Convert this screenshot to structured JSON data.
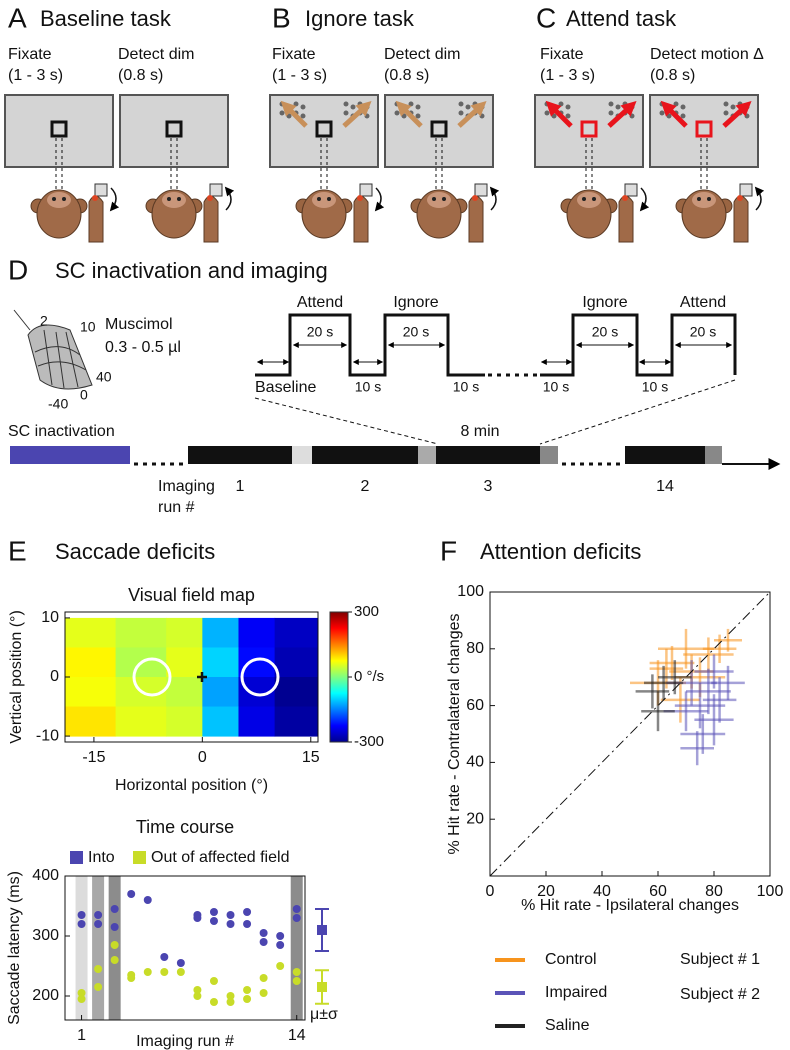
{
  "panel_a": {
    "letter": "A",
    "title": "Baseline task",
    "phase1": [
      "Fixate",
      "(1 - 3 s)"
    ],
    "phase2": [
      "Detect dim",
      "(0.8 s)"
    ]
  },
  "panel_b": {
    "letter": "B",
    "title": "Ignore task",
    "phase1": [
      "Fixate",
      "(1 - 3 s)"
    ],
    "phase2": [
      "Detect dim",
      "(0.8 s)"
    ]
  },
  "panel_c": {
    "letter": "C",
    "title": "Attend task",
    "phase1": [
      "Fixate",
      "(1 - 3 s)"
    ],
    "phase2": [
      "Detect motion Δ",
      "(0.8 s)"
    ]
  },
  "panel_d": {
    "letter": "D",
    "title": "SC inactivation and imaging",
    "drug": "Muscimol",
    "dose": "0.3 - 0.5 µl",
    "grid_labels": [
      "2",
      "10",
      "40",
      "0",
      "-40"
    ],
    "blocks": [
      "Attend",
      "Ignore",
      "Ignore",
      "Attend"
    ],
    "durations": [
      "20 s",
      "20 s",
      "20 s",
      "20 s"
    ],
    "gaps": [
      "10 s",
      "10 s",
      "10 s",
      "10 s"
    ],
    "baseline": "Baseline",
    "run_length": "8 min",
    "inactivation": "SC inactivation",
    "run_axis": [
      "Imaging",
      "run #"
    ],
    "runs": [
      "1",
      "2",
      "3",
      "14"
    ]
  },
  "panel_e": {
    "letter": "E",
    "title": "Saccade deficits"
  },
  "panel_f": {
    "letter": "F",
    "title": "Attention deficits",
    "subjects": [
      "Subject # 1",
      "Subject # 2"
    ]
  },
  "chart_data": [
    {
      "type": "heatmap",
      "title": "Visual field map",
      "x_label": "Horizontal position (°)",
      "y_label": "Vertical position (°)",
      "xlim": [
        -19,
        16
      ],
      "ylim": [
        -11,
        11
      ],
      "xticks": [
        -15,
        0,
        15
      ],
      "yticks": [
        10,
        0,
        -10
      ],
      "x_edges": [
        -19,
        -12,
        -5,
        0,
        5,
        10,
        16
      ],
      "y_edges": [
        10,
        5,
        0,
        -5,
        -10
      ],
      "values": [
        [
          60,
          40,
          50,
          -120,
          -230,
          -260
        ],
        [
          80,
          30,
          60,
          -100,
          -220,
          -270
        ],
        [
          70,
          50,
          40,
          -130,
          -250,
          -290
        ],
        [
          90,
          60,
          50,
          -110,
          -240,
          -280
        ]
      ],
      "clim": [
        -300,
        300
      ],
      "cticks": [
        300,
        {
          "value": 0,
          "label": "0 °/s"
        },
        -300
      ]
    },
    {
      "type": "scatter",
      "title": "Time course",
      "x_label": "Imaging run #",
      "y_label": "Saccade latency (ms)",
      "xlim": [
        0,
        14.5
      ],
      "ylim": [
        160,
        400
      ],
      "xticks": [
        1,
        14
      ],
      "yticks": [
        200,
        300,
        400
      ],
      "shaded_x": [
        1,
        2,
        3,
        14
      ],
      "summary_label": "μ±σ",
      "series": [
        {
          "name": "Into",
          "color": "#4b45b0",
          "x": [
            1,
            1,
            2,
            2,
            3,
            3,
            4,
            5,
            6,
            7,
            8,
            8,
            9,
            9,
            10,
            10,
            11,
            11,
            12,
            12,
            13,
            13,
            14,
            14
          ],
          "values": [
            335,
            320,
            335,
            320,
            345,
            315,
            370,
            360,
            265,
            255,
            335,
            330,
            340,
            325,
            335,
            320,
            340,
            320,
            305,
            290,
            285,
            300,
            345,
            330
          ],
          "mean": 310,
          "sd": 35
        },
        {
          "name": "Out of affected field",
          "color": "#c8dc28",
          "x": [
            1,
            1,
            2,
            2,
            3,
            3,
            4,
            4,
            5,
            6,
            7,
            8,
            8,
            9,
            9,
            10,
            10,
            11,
            11,
            12,
            12,
            13,
            14,
            14
          ],
          "values": [
            205,
            195,
            215,
            245,
            285,
            260,
            230,
            235,
            240,
            240,
            240,
            210,
            200,
            225,
            190,
            200,
            190,
            210,
            195,
            230,
            205,
            250,
            240,
            225
          ],
          "mean": 215,
          "sd": 28
        }
      ]
    },
    {
      "type": "errorcross",
      "x_label": "% Hit rate - Ipsilateral changes",
      "y_label": "% Hit rate - Contralateral changes",
      "xlim": [
        0,
        100
      ],
      "ylim": [
        0,
        100
      ],
      "xticks": [
        0,
        20,
        40,
        60,
        80,
        100
      ],
      "yticks": [
        20,
        40,
        60,
        80,
        100
      ],
      "series": [
        {
          "name": "Control",
          "color": "#f7941d",
          "x": [
            65,
            70,
            78,
            82,
            60,
            72,
            68,
            85,
            75,
            63
          ],
          "values": [
            75,
            80,
            78,
            80,
            68,
            72,
            62,
            83,
            70,
            73
          ],
          "xerr": [
            8,
            10,
            9,
            6,
            10,
            8,
            7,
            5,
            9,
            6
          ],
          "yerr": [
            6,
            7,
            6,
            5,
            8,
            6,
            8,
            4,
            7,
            7
          ]
        },
        {
          "name": "Impaired",
          "color": "#5b54b8",
          "x": [
            78,
            80,
            75,
            82,
            70,
            85,
            76,
            72,
            80,
            74
          ],
          "values": [
            65,
            55,
            60,
            62,
            58,
            68,
            50,
            68,
            72,
            45
          ],
          "xerr": [
            8,
            7,
            9,
            6,
            8,
            6,
            8,
            9,
            7,
            6
          ],
          "yerr": [
            8,
            9,
            8,
            8,
            7,
            6,
            7,
            8,
            6,
            6
          ]
        },
        {
          "name": "Saline",
          "color": "#222222",
          "x": [
            58,
            62,
            66,
            60
          ],
          "values": [
            65,
            68,
            70,
            58
          ],
          "xerr": [
            6,
            7,
            6,
            6
          ],
          "yerr": [
            6,
            6,
            6,
            7
          ]
        }
      ]
    }
  ]
}
